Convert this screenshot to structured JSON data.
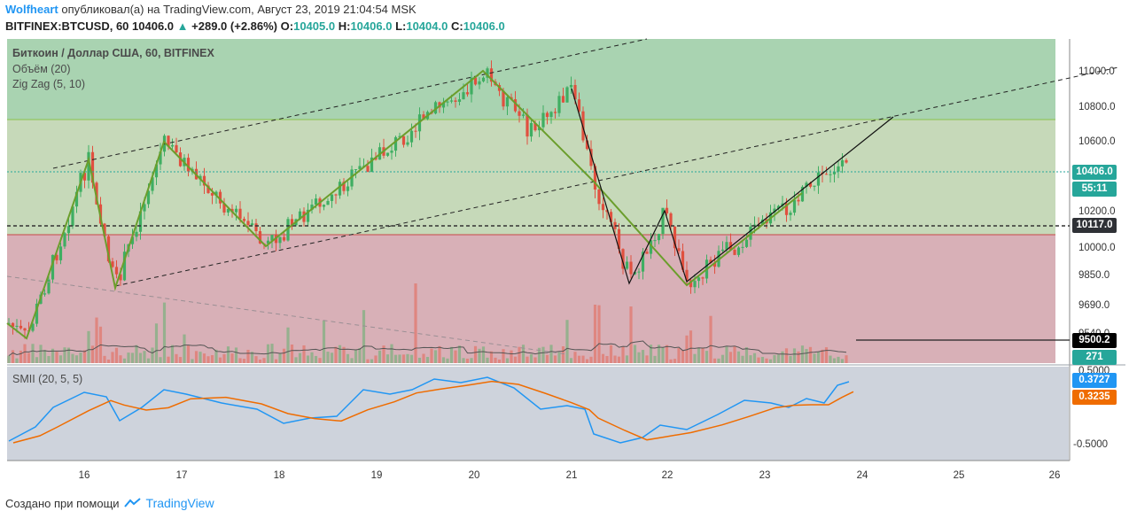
{
  "header": {
    "author": "Wolfheart",
    "published_text": "опубликовал(а) на TradingView.com, Август 23, 2019 21:04:54 MSK",
    "symbol": "BITFINEX:BTCUSD, 60",
    "last": "10406.0",
    "change": "+289.0 (+2.86%)",
    "o_label": "O:",
    "o_value": "10405.0",
    "h_label": "H:",
    "h_value": "10406.0",
    "l_label": "L:",
    "l_value": "10404.0",
    "c_label": "C:",
    "c_value": "10406.0"
  },
  "legend": {
    "title": "Биткоин / Доллар США, 60, BITFINEX",
    "volume": "Объём (20)",
    "zigzag": "Zig Zag (5, 10)",
    "smii": "SMII (20, 5, 5)"
  },
  "price_axis": [
    "11000.0",
    "10800.0",
    "10600.0",
    "10200.0",
    "10000.0",
    "9850.0",
    "9690.0",
    "9540.0"
  ],
  "price_labels": {
    "last_price": "10406.0",
    "countdown": "55:11",
    "horizontal_level": "10117.0",
    "line_level": "9500.2",
    "volume": "271"
  },
  "smii_axis": [
    "0.5000",
    "-0.5000"
  ],
  "smii_labels": {
    "smi": "0.3727",
    "signal": "0.3235"
  },
  "time_axis": [
    "16",
    "17",
    "18",
    "19",
    "20",
    "21",
    "22",
    "23",
    "24",
    "25",
    "26"
  ],
  "colors": {
    "up": "#26a69a",
    "upper_zone": "#a9d3b1",
    "mid_zone": "#c6d9b9",
    "lower_zone": "#d8b0b7",
    "zigzag": "#6b9e2c",
    "smi_line": "#2196f3",
    "signal_line": "#ef6c00"
  },
  "footer": {
    "created_with": "Создано при помощи",
    "brand": "TradingView"
  }
}
